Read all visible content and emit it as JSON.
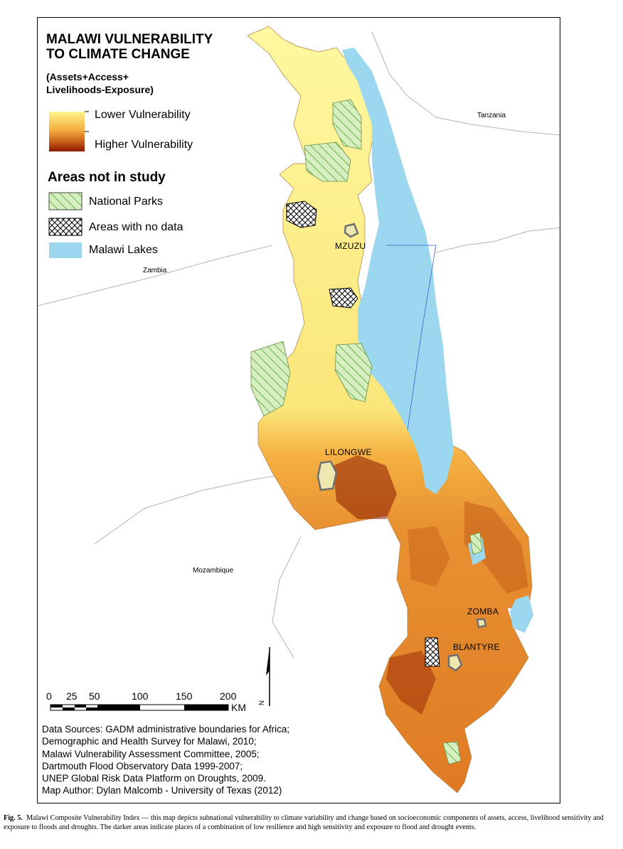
{
  "map": {
    "title_line1": "MALAWI VULNERABILITY",
    "title_line2": "TO CLIMATE CHANGE",
    "subtitle_line1": "(Assets+Access+",
    "subtitle_line2": "Livelihoods-Exposure)",
    "legend": {
      "lower": "Lower Vulnerability",
      "higher": "Higher Vulnerability",
      "areas_heading": "Areas not in study",
      "national_parks": "National Parks",
      "no_data": "Areas with no data",
      "lakes": "Malawi Lakes"
    },
    "colors": {
      "low": "#fdf58e",
      "mid": "#f5b041",
      "high": "#c8601a",
      "highest": "#8b1a00",
      "lake": "#9bd8ef",
      "park": "#d7eec0",
      "park_hatch": "#63b545",
      "boundary": "#b4b4b4"
    },
    "countries": {
      "tanzania": "Tanzania",
      "zambia": "Zambia",
      "mozambique": "Mozambique"
    },
    "cities": {
      "mzuzu": "MZUZU",
      "lilongwe": "LILONGWE",
      "zomba": "ZOMBA",
      "blantyre": "BLANTYRE"
    },
    "scale": {
      "ticks": [
        "0",
        "25",
        "50",
        "100",
        "150",
        "200"
      ],
      "unit": "KM"
    },
    "north": "N",
    "sources": [
      "Data Sources: GADM administrative boundaries for Africa;",
      "Demographic and Health Survey for Malawi, 2010;",
      "Malawi Vulnerability Assessment Committee, 2005;",
      "Dartmouth Flood Observatory Data 1999-2007;",
      "UNEP Global Risk Data Platform on Droughts, 2009.",
      "Map Author:  Dylan Malcomb - University of Texas (2012)"
    ]
  },
  "caption": {
    "label": "Fig. 5.",
    "text": "Malawi Composite Vulnerability Index — this map depicts subnational vulnerability to climate variability and change based on socioeconomic components of assets, access, livelihood sensitivity and exposure to floods and droughts. The darker areas indicate places of a combination of low resilience and high sensitivity and exposure to flood and drought events."
  }
}
